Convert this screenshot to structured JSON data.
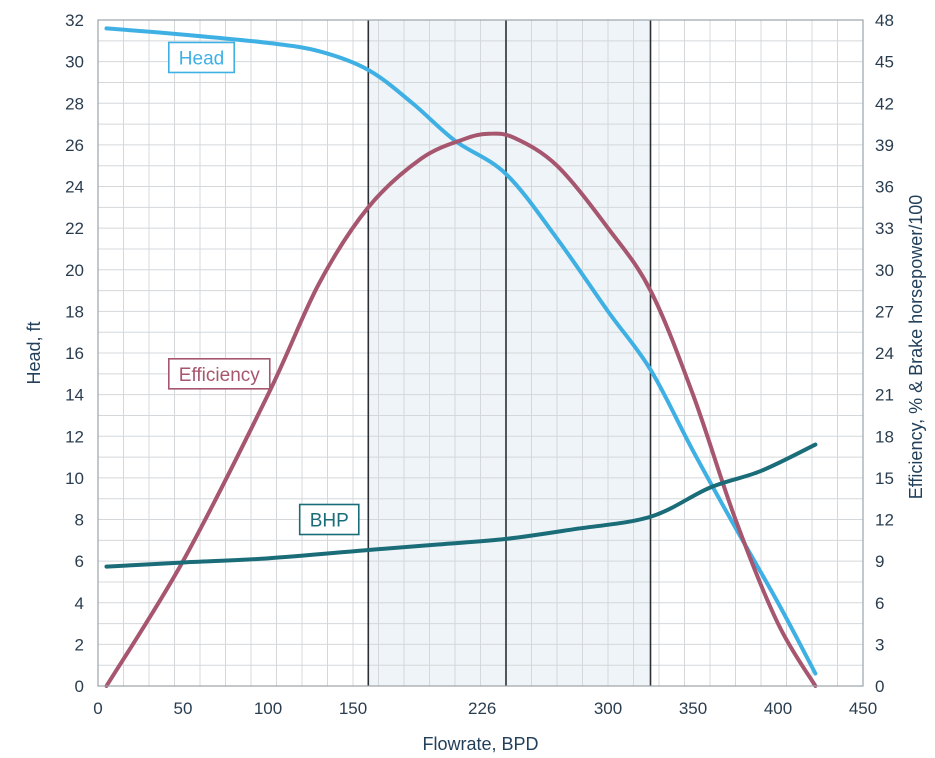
{
  "chart_data": {
    "type": "line",
    "xlabel": "Flowrate, BPD",
    "ylabel_left": "Head, ft",
    "ylabel_right": "Efficiency, % & Brake horsepower/100",
    "xlim": [
      0,
      450
    ],
    "ylim_left": [
      0,
      32
    ],
    "ylim_right": [
      0,
      48
    ],
    "x_ticks": [
      0,
      50,
      100,
      150,
      226,
      300,
      350,
      400,
      450
    ],
    "y_ticks_left": [
      0,
      2,
      4,
      6,
      8,
      10,
      12,
      14,
      16,
      18,
      20,
      22,
      24,
      26,
      28,
      30,
      32
    ],
    "y_ticks_right": [
      0,
      3,
      6,
      9,
      12,
      15,
      18,
      21,
      24,
      27,
      30,
      33,
      36,
      39,
      42,
      45,
      48
    ],
    "grid": true,
    "shaded_region": {
      "x_from": 159,
      "x_to": 325
    },
    "vertical_lines": [
      159,
      240,
      325
    ],
    "series": [
      {
        "name": "Head",
        "axis": "left",
        "color": "#3fb0e3",
        "x": [
          5,
          50,
          100,
          130,
          159,
          185,
          210,
          240,
          270,
          300,
          325,
          350,
          375,
          400,
          422
        ],
        "y": [
          31.6,
          31.3,
          30.9,
          30.5,
          29.6,
          28.0,
          26.2,
          24.6,
          21.5,
          18.0,
          15.2,
          11.3,
          7.6,
          4.0,
          0.6
        ]
      },
      {
        "name": "Efficiency",
        "axis": "right",
        "color": "#a6566e",
        "x": [
          5,
          50,
          100,
          130,
          159,
          190,
          215,
          230,
          245,
          270,
          300,
          325,
          350,
          375,
          400,
          422
        ],
        "y": [
          0,
          9.0,
          21.0,
          29.0,
          34.5,
          38.0,
          39.4,
          39.8,
          39.5,
          37.5,
          33.0,
          28.5,
          21.0,
          12.0,
          4.5,
          0
        ]
      },
      {
        "name": "BHP",
        "axis": "right",
        "color": "#1a6d78",
        "x": [
          5,
          50,
          100,
          159,
          200,
          240,
          280,
          325,
          360,
          390,
          422
        ],
        "y": [
          8.6,
          8.9,
          9.2,
          9.8,
          10.2,
          10.6,
          11.3,
          12.2,
          14.3,
          15.5,
          17.4
        ]
      }
    ],
    "annotations": [
      {
        "text": "Head",
        "series": "Head",
        "x": 44,
        "y_left": 30.2,
        "color": "#3fb0e3"
      },
      {
        "text": "Efficiency",
        "series": "Efficiency",
        "x": 44,
        "y_left": 15,
        "color": "#a6566e"
      },
      {
        "text": "BHP",
        "series": "BHP",
        "x": 121,
        "y_left": 8.0,
        "color": "#1a6d78"
      }
    ]
  }
}
